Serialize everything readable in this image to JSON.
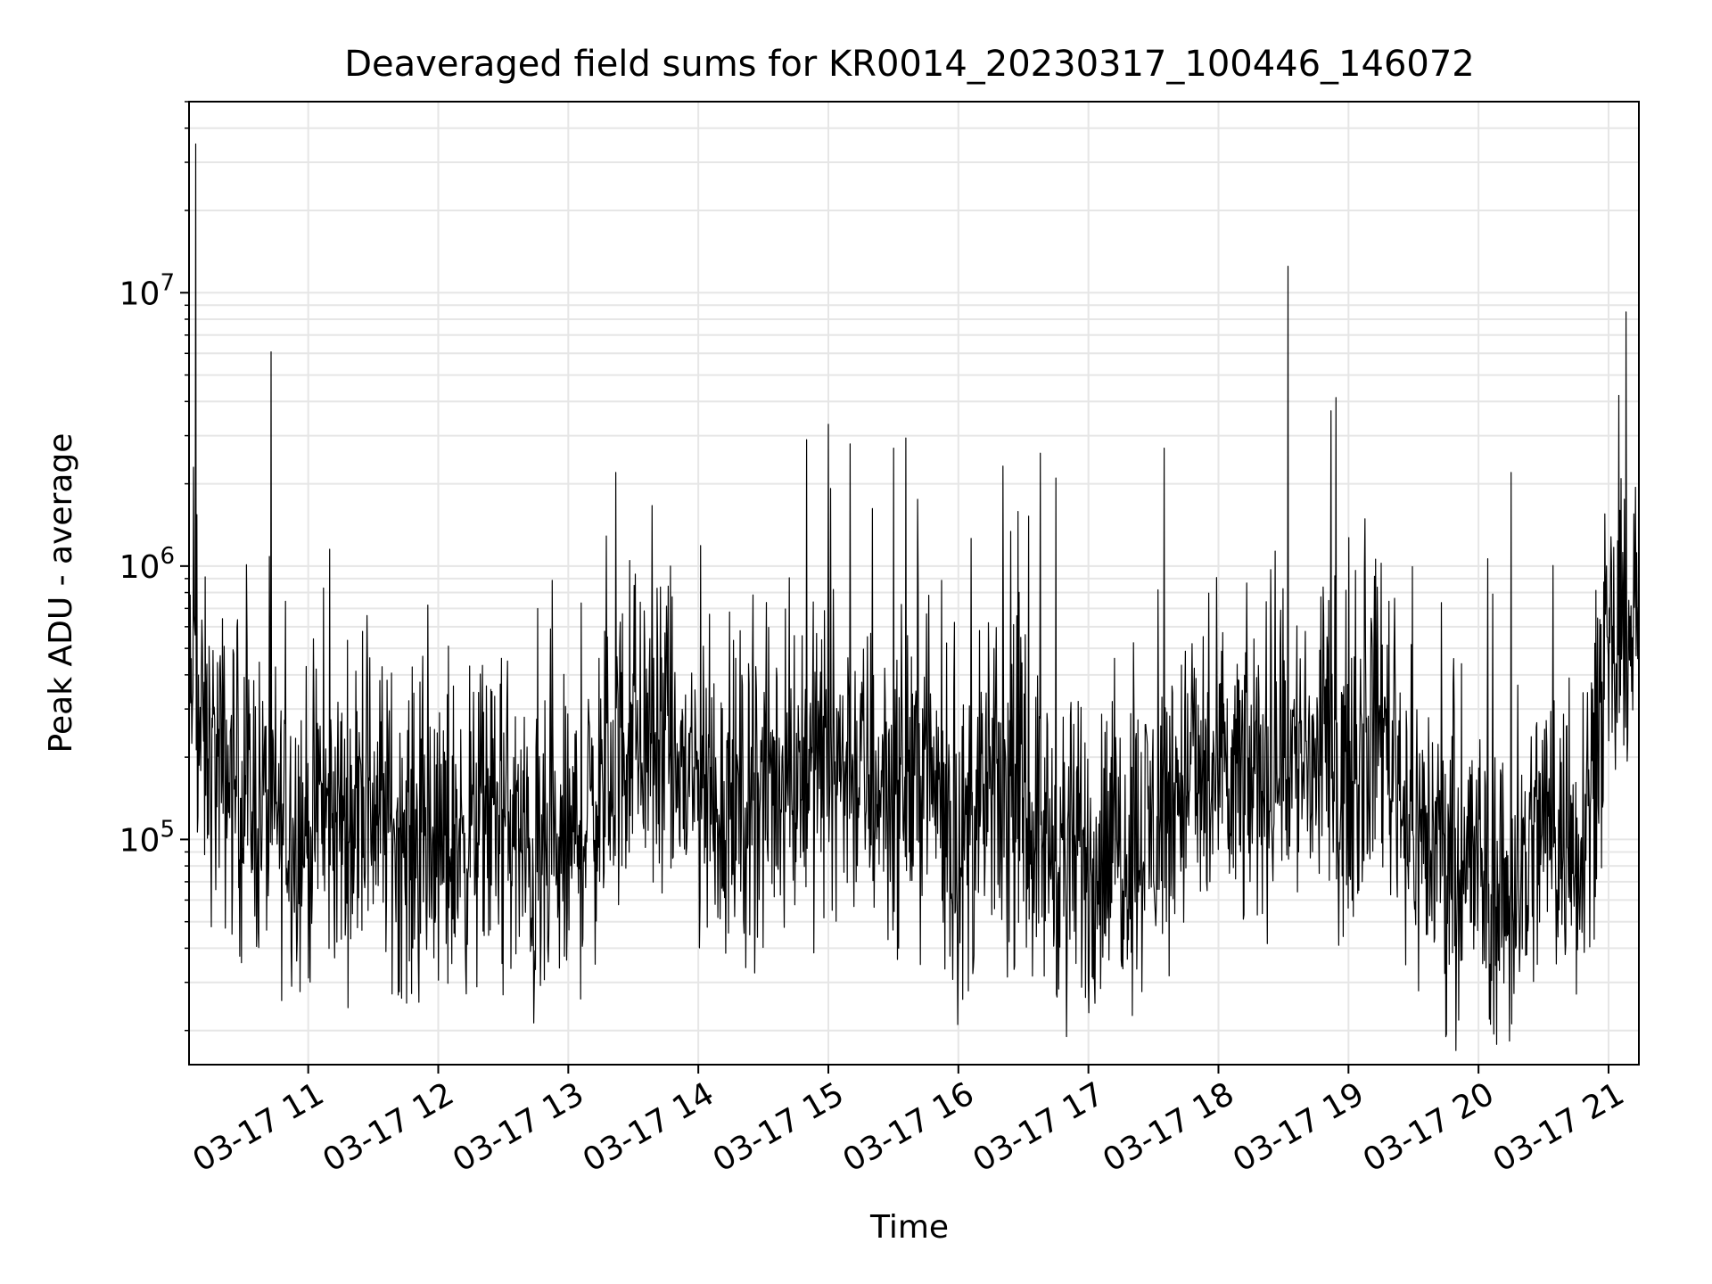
{
  "chart_data": {
    "type": "line",
    "title": "Deaveraged field sums for KR0014_20230317_100446_146072",
    "xlabel": "Time",
    "ylabel": "Peak ADU - average",
    "yscale": "log",
    "grid": true,
    "grid_minor": true,
    "colors": {
      "line": "#000000",
      "grid": "#e6e6e6",
      "axes": "#000000"
    },
    "xlim": [
      "2023-03-17 10:05:00",
      "2023-03-17 21:14:00"
    ],
    "ylim": [
      15000,
      50000000
    ],
    "x_ticks": [
      {
        "t": "2023-03-17 11:00",
        "label": "03-17 11"
      },
      {
        "t": "2023-03-17 12:00",
        "label": "03-17 12"
      },
      {
        "t": "2023-03-17 13:00",
        "label": "03-17 13"
      },
      {
        "t": "2023-03-17 14:00",
        "label": "03-17 14"
      },
      {
        "t": "2023-03-17 15:00",
        "label": "03-17 15"
      },
      {
        "t": "2023-03-17 16:00",
        "label": "03-17 16"
      },
      {
        "t": "2023-03-17 17:00",
        "label": "03-17 17"
      },
      {
        "t": "2023-03-17 18:00",
        "label": "03-17 18"
      },
      {
        "t": "2023-03-17 19:00",
        "label": "03-17 19"
      },
      {
        "t": "2023-03-17 20:00",
        "label": "03-17 20"
      },
      {
        "t": "2023-03-17 21:00",
        "label": "03-17 21"
      }
    ],
    "y_ticks": [
      {
        "v": 100000,
        "base": "10",
        "exp": "5"
      },
      {
        "v": 1000000,
        "base": "10",
        "exp": "6"
      },
      {
        "v": 10000000,
        "base": "10",
        "exp": "7"
      }
    ],
    "series": [
      {
        "x": [
          "2023-03-17 10:05",
          "2023-03-17 10:15",
          "2023-03-17 10:30",
          "2023-03-17 10:45",
          "2023-03-17 11:00",
          "2023-03-17 11:15",
          "2023-03-17 11:30",
          "2023-03-17 11:45",
          "2023-03-17 12:00",
          "2023-03-17 12:15",
          "2023-03-17 12:30",
          "2023-03-17 12:45",
          "2023-03-17 13:00",
          "2023-03-17 13:15",
          "2023-03-17 13:30",
          "2023-03-17 13:45",
          "2023-03-17 14:00",
          "2023-03-17 14:15",
          "2023-03-17 14:30",
          "2023-03-17 14:45",
          "2023-03-17 15:00",
          "2023-03-17 15:15",
          "2023-03-17 15:30",
          "2023-03-17 15:45",
          "2023-03-17 16:00",
          "2023-03-17 16:15",
          "2023-03-17 16:30",
          "2023-03-17 16:45",
          "2023-03-17 17:00",
          "2023-03-17 17:15",
          "2023-03-17 17:30",
          "2023-03-17 17:45",
          "2023-03-17 18:00",
          "2023-03-17 18:15",
          "2023-03-17 18:30",
          "2023-03-17 18:45",
          "2023-03-17 19:00",
          "2023-03-17 19:15",
          "2023-03-17 19:30",
          "2023-03-17 19:45",
          "2023-03-17 20:00",
          "2023-03-17 20:15",
          "2023-03-17 20:30",
          "2023-03-17 20:45",
          "2023-03-17 21:00",
          "2023-03-17 21:14"
        ],
        "y": [
          300000,
          200000,
          150000,
          120000,
          110000,
          120000,
          140000,
          100000,
          90000,
          110000,
          130000,
          70000,
          90000,
          150000,
          250000,
          200000,
          150000,
          130000,
          150000,
          180000,
          200000,
          170000,
          150000,
          200000,
          90000,
          150000,
          130000,
          90000,
          80000,
          100000,
          110000,
          170000,
          150000,
          170000,
          200000,
          190000,
          170000,
          300000,
          110000,
          90000,
          80000,
          60000,
          120000,
          90000,
          400000,
          700000
        ]
      }
    ],
    "peaks": [
      {
        "t": "2023-03-17 10:08",
        "v": 35000000
      },
      {
        "t": "2023-03-17 10:07",
        "v": 2300000
      },
      {
        "t": "2023-03-17 13:22",
        "v": 2200000
      },
      {
        "t": "2023-03-17 14:50",
        "v": 2900000
      },
      {
        "t": "2023-03-17 15:00",
        "v": 3300000
      },
      {
        "t": "2023-03-17 15:10",
        "v": 2800000
      },
      {
        "t": "2023-03-17 15:30",
        "v": 2700000
      },
      {
        "t": "2023-03-17 16:45",
        "v": 2100000
      },
      {
        "t": "2023-03-17 17:35",
        "v": 2700000
      },
      {
        "t": "2023-03-17 18:32",
        "v": 12500000
      },
      {
        "t": "2023-03-17 18:52",
        "v": 3700000
      },
      {
        "t": "2023-03-17 20:15",
        "v": 2200000
      },
      {
        "t": "2023-03-17 21:08",
        "v": 8500000
      }
    ],
    "troughs": [
      {
        "t": "2023-03-17 16:50",
        "v": 19000
      },
      {
        "t": "2023-03-17 20:05",
        "v": 22000
      },
      {
        "t": "2023-03-17 12:30",
        "v": 27000
      },
      {
        "t": "2023-03-17 16:02",
        "v": 26000
      }
    ]
  }
}
